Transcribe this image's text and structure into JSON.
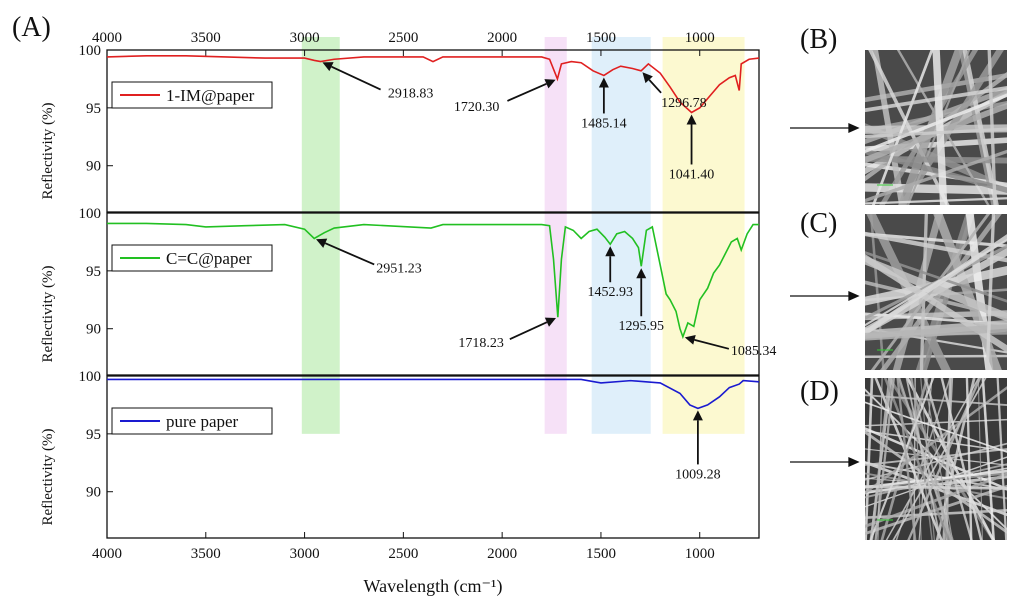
{
  "panel_labels": [
    "(A)",
    "(B)",
    "(C)",
    "(D)"
  ],
  "highlight_bands": [
    {
      "x": [
        3014,
        2822
      ],
      "color": "#c8f0c0"
    },
    {
      "x": [
        1785,
        1673
      ],
      "color": "#f4dcf6"
    },
    {
      "x": [
        1547,
        1248
      ],
      "color": "#d9ecf9"
    },
    {
      "x": [
        1188,
        773
      ],
      "color": "#fbf8c8"
    }
  ],
  "chart_data": [
    {
      "type": "line",
      "ylabel": "Reflectivity (%)",
      "xlim": [
        4000,
        700
      ],
      "ylim": [
        86,
        100
      ],
      "yticks": [
        100,
        95,
        90
      ],
      "xticks": [
        4000,
        3500,
        3000,
        2500,
        2000,
        1500,
        1000
      ],
      "xaxis_position": "top",
      "legend": "upper left",
      "series": [
        {
          "name": "1-IM@paper",
          "color": "#e02020",
          "x": [
            4000,
            3800,
            3600,
            3400,
            3200,
            3000,
            2950,
            2918.83,
            2850,
            2700,
            2400,
            2350,
            2300,
            2000,
            1800,
            1760,
            1720.3,
            1700,
            1650,
            1600,
            1540,
            1485.14,
            1440,
            1400,
            1340,
            1296.78,
            1260,
            1200,
            1150,
            1100,
            1041.4,
            1000,
            950,
            900,
            850,
            820,
            800,
            790,
            750,
            700
          ],
          "values": [
            99.4,
            99.5,
            99.5,
            99.4,
            99.3,
            99.3,
            99.1,
            99.0,
            99.2,
            99.4,
            99.4,
            99.0,
            99.4,
            99.4,
            99.4,
            99.2,
            97.5,
            98.8,
            99.0,
            98.9,
            98.2,
            97.8,
            98.3,
            98.6,
            98.4,
            98.2,
            98.8,
            98.0,
            96.8,
            95.5,
            94.6,
            95.0,
            96.0,
            97.0,
            97.6,
            97.8,
            96.5,
            98.8,
            99.2,
            99.3
          ]
        }
      ],
      "annotations": [
        {
          "text": "2918.83",
          "x": 2918.83,
          "y": 99.0
        },
        {
          "text": "1720.30",
          "x": 1720.3,
          "y": 97.5
        },
        {
          "text": "1485.14",
          "x": 1485.14,
          "y": 97.8
        },
        {
          "text": "1296.78",
          "x": 1296.78,
          "y": 98.2
        },
        {
          "text": "1041.40",
          "x": 1041.4,
          "y": 94.6
        }
      ]
    },
    {
      "type": "line",
      "ylabel": "Reflectivity (%)",
      "xlim": [
        4000,
        700
      ],
      "ylim": [
        86,
        100
      ],
      "yticks": [
        100,
        95,
        90
      ],
      "legend": "upper left",
      "series": [
        {
          "name": "C=C@paper",
          "color": "#22c022",
          "x": [
            4000,
            3800,
            3600,
            3500,
            3300,
            3100,
            3000,
            2951.23,
            2900,
            2850,
            2700,
            2360,
            2300,
            1800,
            1760,
            1740,
            1718.23,
            1700,
            1680,
            1640,
            1600,
            1560,
            1520,
            1480,
            1452.93,
            1420,
            1380,
            1340,
            1310,
            1295.95,
            1270,
            1240,
            1200,
            1170,
            1150,
            1120,
            1100,
            1085.34,
            1060,
            1030,
            1000,
            960,
            930,
            900,
            870,
            840,
            810,
            790,
            760,
            730,
            700
          ],
          "values": [
            99.1,
            99.1,
            99.0,
            98.8,
            98.9,
            99.0,
            98.6,
            97.8,
            98.3,
            98.7,
            99.0,
            98.7,
            99.0,
            99.0,
            98.9,
            96.0,
            91.0,
            96.0,
            98.8,
            98.5,
            97.8,
            98.4,
            98.6,
            97.9,
            97.3,
            98.2,
            98.4,
            97.8,
            97.0,
            95.4,
            98.5,
            98.8,
            95.5,
            93.0,
            92.5,
            91.5,
            90.0,
            89.3,
            90.5,
            90.2,
            92.5,
            93.5,
            94.8,
            95.5,
            96.5,
            97.5,
            97.8,
            96.8,
            98.2,
            99.0,
            99.0
          ]
        }
      ],
      "annotations": [
        {
          "text": "2951.23",
          "x": 2951.23,
          "y": 97.8
        },
        {
          "text": "1718.23",
          "x": 1718.23,
          "y": 91.0
        },
        {
          "text": "1452.93",
          "x": 1452.93,
          "y": 97.3
        },
        {
          "text": "1295.95",
          "x": 1295.95,
          "y": 95.4
        },
        {
          "text": "1085.34",
          "x": 1085.34,
          "y": 89.3
        }
      ]
    },
    {
      "type": "line",
      "ylabel": "Reflectivity (%)",
      "xlabel": "Wavelength (cm⁻¹)",
      "xlim": [
        4000,
        700
      ],
      "ylim": [
        86,
        100
      ],
      "yticks": [
        100,
        95,
        90
      ],
      "xticks": [
        4000,
        3500,
        3000,
        2500,
        2000,
        1500,
        1000
      ],
      "xaxis_position": "bottom",
      "legend": "upper left",
      "series": [
        {
          "name": "pure paper",
          "color": "#1a1ad0",
          "x": [
            4000,
            2000,
            1600,
            1500,
            1350,
            1200,
            1100,
            1050,
            1009.28,
            960,
            900,
            850,
            800,
            780,
            700
          ],
          "values": [
            99.7,
            99.7,
            99.7,
            99.4,
            99.6,
            99.4,
            98.5,
            97.5,
            97.2,
            97.5,
            98.2,
            99.0,
            99.3,
            99.6,
            99.5
          ]
        }
      ],
      "annotations": [
        {
          "text": "1009.28",
          "x": 1009.28,
          "y": 97.2
        }
      ]
    }
  ]
}
